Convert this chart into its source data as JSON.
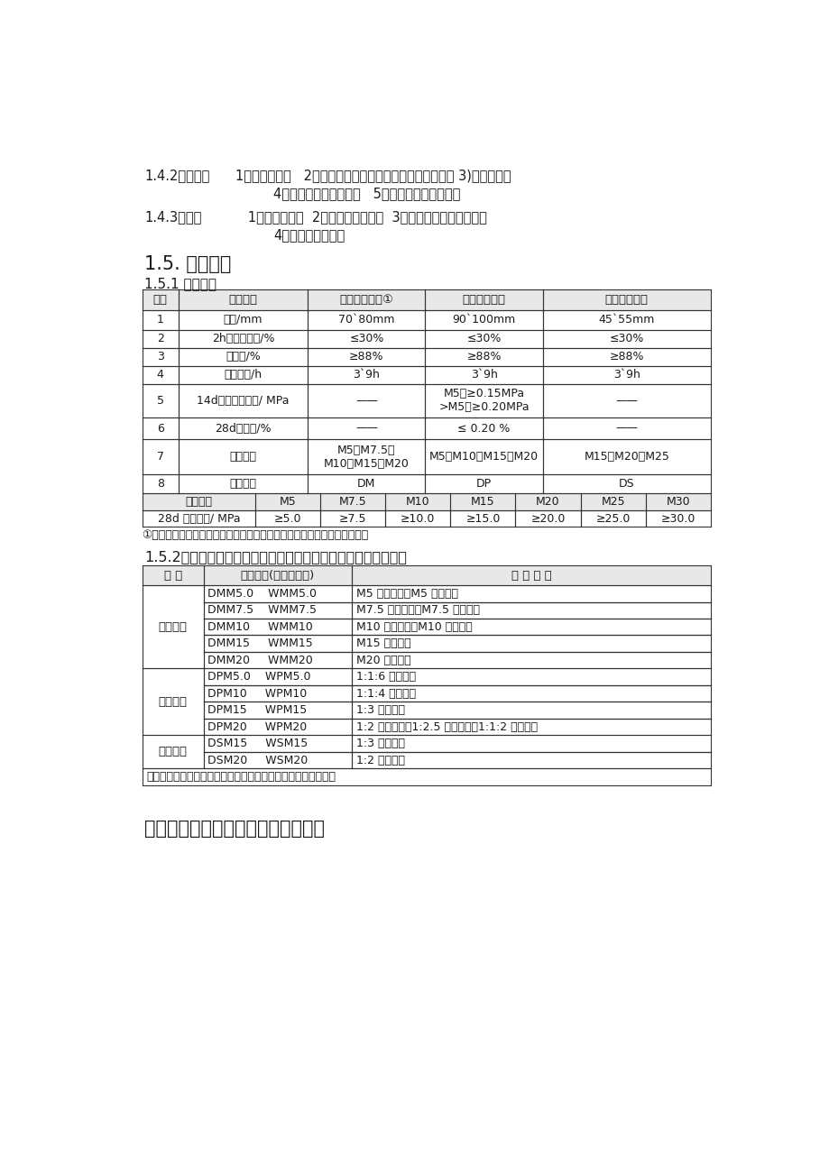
{
  "bg_color": "#ffffff",
  "text_color": "#1a1a1a",
  "para1_bold": "1.4.2抹灰类：",
  "para1_rest": "1）烧结砖砌体   2）除石膏外机械压型与蒸压（养）砖砌体 3)混凝土砌体",
  "para1_line2": "4）蒸压加气混凝土砌体   5）毛料石、粗料石砌体",
  "para2_bold": "1.4.3地面类",
  "para2_rest": "   1）混凝土基层  2）厚型牢固砖基层  3）平整毛料、粗料石基层",
  "para2_line2": "4）夯实连砂石基层",
  "section1": "1.5. 用户须知",
  "section2": "1.5.1 技术指标",
  "t1_headers": [
    "序号",
    "检验项目",
    "普通砌筑砂浆①",
    "普通抹灰砂浆",
    "干混地面砂浆"
  ],
  "t1_rows": [
    [
      "1",
      "稠度/mm",
      "70`80mm",
      "90`100mm",
      "45`55mm"
    ],
    [
      "2",
      "2h稠度损失率/%",
      "≤30%",
      "≤30%",
      "≤30%"
    ],
    [
      "3",
      "保水率/%",
      "≥88%",
      "≥88%",
      "≥88%"
    ],
    [
      "4",
      "凝结时间/h",
      "3`9h",
      "3`9h",
      "3`9h"
    ],
    [
      "5",
      "14d拉伸粘结强度/ MPa",
      "——",
      "M5：≥0.15MPa\n>M5：≥0.20MPa",
      "——"
    ],
    [
      "6",
      "28d收缩率/%",
      "——",
      "≤ 0.20 %",
      "——"
    ],
    [
      "7",
      "强度等级",
      "M5、M7.5、\nM10、M15、M20",
      "M5、M10、M15、M20",
      "M15、M20、M25"
    ],
    [
      "8",
      "产品代号",
      "DM",
      "DP",
      "DS"
    ]
  ],
  "t1_sub_h": [
    "强度等级",
    "M5",
    "M7.5",
    "M10",
    "M15",
    "M20",
    "M25",
    "M30"
  ],
  "t1_sub_r": [
    "28d 抗压强度/ MPa",
    "≥5.0",
    "≥7.5",
    "≥10.0",
    "≥15.0",
    "≥20.0",
    "≥25.0",
    "≥30.0"
  ],
  "t1_note": "①注：普通砌筑砂浆稠度应根据砌体种类不同而不同。（下方有明确说明）",
  "section3": "1.5.2预拌（干混）砂浆与传统建筑砂浆的对应关系（仅供参考）",
  "t2_headers": [
    "品 种",
    "预拌砂浆(干混、湿拌)",
    "传 统 砂 浆"
  ],
  "t2_rows": [
    [
      "砌筑砂浆",
      "DMM5.0    WMM5.0",
      "M5 混合砂浆、M5 水泥砂浆",
      "0"
    ],
    [
      "",
      "DMM7.5    WMM7.5",
      "M7.5 混合砂浆、M7.5 水泥砂浆",
      "0"
    ],
    [
      "",
      "DMM10     WMM10",
      "M10 混合砂浆、M10 水泥砂浆",
      "0"
    ],
    [
      "",
      "DMM15     WMM15",
      "M15 水泥砂浆",
      "0"
    ],
    [
      "",
      "DMM20     WMM20",
      "M20 水泥砂浆",
      "1"
    ],
    [
      "抹灰砂浆",
      "DPM5.0    WPM5.0",
      "1:1:6 混合砂浆",
      "0"
    ],
    [
      "",
      "DPM10     WPM10",
      "1:1:4 混合砂浆",
      "0"
    ],
    [
      "",
      "DPM15     WPM15",
      "1:3 水泥砂浆",
      "0"
    ],
    [
      "",
      "DPM20     WPM20",
      "1:2 水泥砂浆、1:2.5 水泥砂浆、1:1:2 混合砂浆",
      "1"
    ],
    [
      "地面砂浆",
      "DSM15     WSM15",
      "1:3 水泥砂浆",
      "0"
    ],
    [
      "",
      "DSM20     WSM20",
      "1:2 水泥砂浆",
      "0"
    ]
  ],
  "t2_note": "备注：其它砂浆可根据强度和性能要求，选用相应的预拌砂浆。",
  "t2_groups": [
    {
      "label": "砌筑砂浆",
      "start": 0,
      "end": 5
    },
    {
      "label": "抹灰砂浆",
      "start": 5,
      "end": 9
    },
    {
      "label": "地面砂浆",
      "start": 9,
      "end": 11
    }
  ],
  "section4": "二、预拌（干混）砂浆施工技术交底"
}
